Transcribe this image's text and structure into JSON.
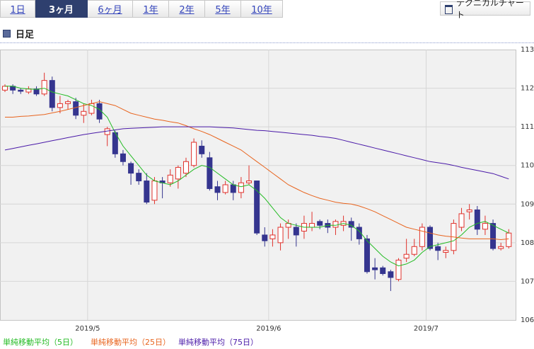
{
  "tabs": [
    "1日",
    "3ヶ月",
    "6ヶ月",
    "1年",
    "2年",
    "5年",
    "10年"
  ],
  "selected_tab": 1,
  "chart_button": "テクニカルチャート",
  "section_title": "日足",
  "chart_data": {
    "type": "candlestick",
    "categories": [
      null,
      null,
      null,
      null,
      null,
      null,
      null,
      null,
      null,
      null,
      "2019/5",
      null,
      null,
      null,
      null,
      null,
      null,
      null,
      null,
      null,
      null,
      null,
      null,
      null,
      null,
      null,
      null,
      null,
      null,
      null,
      null,
      null,
      null,
      "2019/6",
      null,
      null,
      null,
      null,
      null,
      null,
      null,
      null,
      null,
      null,
      null,
      null,
      null,
      null,
      null,
      null,
      null,
      null,
      null,
      "2019/7",
      null,
      null,
      null,
      null,
      null,
      null,
      null,
      null,
      null,
      null,
      null
    ],
    "open": [
      111.95,
      112.05,
      111.95,
      111.9,
      111.98,
      111.85,
      112.2,
      111.5,
      111.6,
      111.65,
      111.3,
      111.35,
      111.6,
      110.8,
      110.85,
      110.3,
      110.05,
      109.8,
      109.6,
      109.1,
      109.6,
      109.55,
      109.65,
      109.8,
      110.0,
      110.5,
      110.2,
      109.45,
      109.3,
      109.5,
      109.3,
      109.55,
      109.6,
      108.2,
      108.1,
      108.0,
      108.4,
      108.4,
      108.3,
      108.4,
      108.55,
      108.5,
      108.4,
      108.45,
      108.55,
      108.4,
      108.1,
      107.35,
      107.35,
      107.25,
      107.05,
      107.6,
      107.7,
      107.9,
      108.4,
      107.9,
      107.75,
      107.8,
      108.4,
      108.8,
      108.85,
      108.35,
      108.5,
      107.85,
      107.9
    ],
    "high": [
      112.1,
      112.1,
      112.0,
      112.05,
      112.05,
      112.4,
      112.3,
      111.8,
      111.7,
      111.75,
      111.6,
      111.7,
      111.7,
      111.0,
      110.9,
      110.4,
      110.1,
      109.9,
      109.8,
      109.7,
      109.7,
      109.9,
      110.0,
      110.2,
      110.7,
      110.65,
      110.35,
      109.6,
      109.6,
      109.6,
      109.7,
      110.0,
      109.6,
      108.4,
      108.35,
      108.5,
      108.6,
      108.5,
      108.7,
      108.8,
      108.6,
      108.6,
      108.6,
      108.7,
      108.65,
      108.5,
      108.2,
      107.6,
      107.4,
      107.3,
      107.6,
      108.1,
      108.1,
      108.5,
      108.45,
      108.0,
      107.9,
      108.6,
      108.9,
      109.0,
      108.95,
      108.7,
      108.6,
      108.0,
      108.35
    ],
    "low": [
      111.9,
      111.85,
      111.85,
      111.85,
      111.8,
      111.8,
      111.4,
      111.35,
      111.45,
      111.2,
      111.1,
      111.3,
      111.1,
      110.5,
      110.2,
      110.0,
      109.5,
      109.5,
      109.0,
      109.0,
      109.15,
      109.45,
      109.4,
      109.7,
      109.95,
      110.2,
      109.35,
      109.1,
      109.25,
      109.1,
      109.15,
      109.5,
      108.2,
      107.9,
      107.9,
      107.8,
      108.1,
      107.9,
      108.1,
      108.3,
      108.35,
      108.25,
      108.2,
      108.3,
      108.05,
      107.95,
      107.2,
      107.05,
      107.15,
      106.75,
      107.0,
      107.5,
      107.65,
      107.8,
      107.8,
      107.55,
      107.6,
      107.7,
      108.3,
      108.6,
      108.2,
      108.2,
      107.8,
      107.8,
      107.85
    ],
    "close": [
      112.05,
      111.95,
      111.92,
      111.98,
      111.85,
      112.2,
      111.5,
      111.6,
      111.65,
      111.3,
      111.4,
      111.6,
      111.2,
      110.95,
      110.3,
      110.1,
      109.8,
      109.6,
      109.05,
      109.6,
      109.55,
      109.75,
      109.95,
      110.1,
      110.6,
      110.3,
      109.4,
      109.3,
      109.5,
      109.3,
      109.55,
      109.6,
      108.25,
      108.05,
      108.2,
      108.4,
      108.5,
      108.2,
      108.5,
      108.5,
      108.45,
      108.4,
      108.55,
      108.55,
      108.4,
      108.1,
      107.25,
      107.3,
      107.2,
      107.1,
      107.55,
      107.7,
      107.9,
      108.4,
      107.85,
      107.8,
      107.8,
      108.5,
      108.75,
      108.85,
      108.35,
      108.5,
      107.85,
      107.9,
      108.25
    ],
    "up_color": "#e0322c",
    "down_color": "#35358f",
    "series": [
      {
        "name": "単純移動平均（5日）",
        "color": "#22bb22",
        "values": [
          112.05,
          112.05,
          112.0,
          111.98,
          111.97,
          112.0,
          111.9,
          111.85,
          111.8,
          111.7,
          111.6,
          111.55,
          111.45,
          111.25,
          110.85,
          110.5,
          110.25,
          110.0,
          109.75,
          109.6,
          109.55,
          109.5,
          109.6,
          109.75,
          109.9,
          110.0,
          109.95,
          109.8,
          109.65,
          109.5,
          109.45,
          109.5,
          109.35,
          109.15,
          108.9,
          108.65,
          108.5,
          108.45,
          108.4,
          108.4,
          108.4,
          108.45,
          108.45,
          108.5,
          108.45,
          108.3,
          108.05,
          107.85,
          107.65,
          107.5,
          107.4,
          107.45,
          107.55,
          107.75,
          107.9,
          107.95,
          108.0,
          108.05,
          108.2,
          108.4,
          108.5,
          108.55,
          108.45,
          108.35,
          108.25
        ]
      },
      {
        "name": "単純移動平均（25日）",
        "color": "#e8641e",
        "values": [
          111.25,
          111.25,
          111.27,
          111.28,
          111.3,
          111.32,
          111.36,
          111.4,
          111.45,
          111.5,
          111.55,
          111.6,
          111.65,
          111.6,
          111.55,
          111.45,
          111.35,
          111.3,
          111.25,
          111.2,
          111.17,
          111.13,
          111.1,
          111.03,
          110.95,
          110.88,
          110.8,
          110.7,
          110.6,
          110.5,
          110.4,
          110.25,
          110.1,
          109.95,
          109.8,
          109.65,
          109.5,
          109.4,
          109.3,
          109.22,
          109.15,
          109.1,
          109.05,
          109.02,
          109.0,
          108.95,
          108.88,
          108.8,
          108.7,
          108.6,
          108.5,
          108.4,
          108.35,
          108.3,
          108.25,
          108.2,
          108.17,
          108.15,
          108.12,
          108.1,
          108.1,
          108.1,
          108.1,
          108.08,
          108.1
        ]
      },
      {
        "name": "単純移動平均（75日）",
        "color": "#4a1aa8",
        "values": [
          110.4,
          110.44,
          110.48,
          110.52,
          110.56,
          110.6,
          110.64,
          110.68,
          110.72,
          110.76,
          110.8,
          110.83,
          110.86,
          110.89,
          110.92,
          110.95,
          110.96,
          110.97,
          110.98,
          110.99,
          111.0,
          111.0,
          111.0,
          111.0,
          111.0,
          111.0,
          111.0,
          110.99,
          110.98,
          110.97,
          110.95,
          110.93,
          110.91,
          110.9,
          110.88,
          110.86,
          110.84,
          110.82,
          110.8,
          110.78,
          110.75,
          110.73,
          110.7,
          110.65,
          110.6,
          110.55,
          110.5,
          110.45,
          110.4,
          110.35,
          110.3,
          110.25,
          110.2,
          110.15,
          110.1,
          110.07,
          110.04,
          110.0,
          109.95,
          109.91,
          109.87,
          109.83,
          109.79,
          109.72,
          109.65
        ]
      }
    ],
    "ylim": [
      106,
      113
    ],
    "yticks": [
      106,
      107,
      108,
      109,
      110,
      111,
      112,
      113
    ],
    "grid": true
  }
}
